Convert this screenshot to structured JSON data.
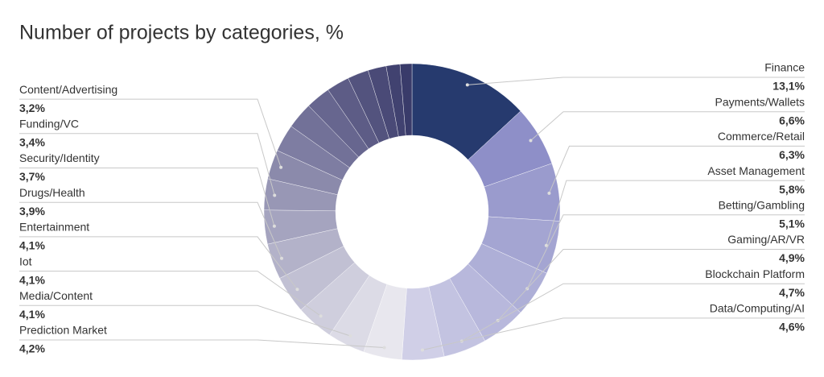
{
  "chart_data": {
    "type": "donut",
    "title": "Number of projects by categories, %",
    "categories": [
      "Finance",
      "Payments/Wallets",
      "Commerce/Retail",
      "Asset Management",
      "Betting/Gambling",
      "Gaming/AR/VR",
      "Blockchain Platform",
      "Data/Computing/AI",
      "Prediction Market",
      "Media/Content",
      "Iot",
      "Entertainment",
      "Drugs/Health",
      "Security/Identity",
      "Funding/VC",
      "Content/Advertising",
      null,
      null,
      null,
      null,
      null,
      null,
      null,
      null
    ],
    "values": [
      13.1,
      6.6,
      6.3,
      5.8,
      5.1,
      4.9,
      4.7,
      4.6,
      4.2,
      4.1,
      4.1,
      4.1,
      3.9,
      3.7,
      3.4,
      3.2,
      3.0,
      2.9,
      2.7,
      2.5,
      2.3,
      2.0,
      1.5,
      1.3
    ],
    "value_labels": [
      "13,1%",
      "6,6%",
      "6,3%",
      "5,8%",
      "5,1%",
      "4,9%",
      "4,7%",
      "4,6%",
      "4,2%",
      "4,1%",
      "4,1%",
      "4,1%",
      "3,9%",
      "3,7%",
      "3,4%",
      "3,2%",
      null,
      null,
      null,
      null,
      null,
      null,
      null,
      null
    ],
    "colors": [
      "#263a6e",
      "#8e8fc8",
      "#9a9bcd",
      "#a4a5d2",
      "#aeafd7",
      "#b8b8dc",
      "#c3c3e1",
      "#d0cfe7",
      "#e8e7ee",
      "#dcdbe6",
      "#cfcedd",
      "#c1c0d3",
      "#b3b2c9",
      "#a5a4bf",
      "#9897b5",
      "#8b8aab",
      "#7e7da2",
      "#727198",
      "#67668f",
      "#5d5c86",
      "#53537e",
      "#4a4a77",
      "#414270",
      "#393b6a"
    ]
  }
}
